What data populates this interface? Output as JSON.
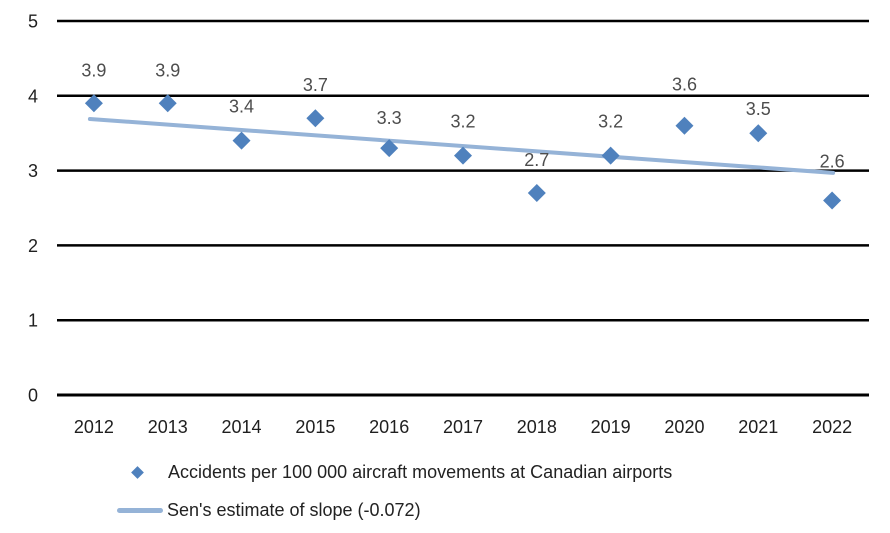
{
  "chart_data": {
    "type": "scatter",
    "title": "",
    "xlabel": "",
    "ylabel": "",
    "categories": [
      "2012",
      "2013",
      "2014",
      "2015",
      "2016",
      "2017",
      "2018",
      "2019",
      "2020",
      "2021",
      "2022"
    ],
    "yticks": [
      "0",
      "1",
      "2",
      "3",
      "4",
      "5"
    ],
    "ylim": [
      0,
      5
    ],
    "grid": "horizontal-only",
    "legend_position": "bottom-left",
    "series": [
      {
        "name": "Accidents per 100 000 aircraft movements at Canadian airports",
        "type": "scatter",
        "marker": "diamond",
        "color": "#4F81BD",
        "values": [
          3.9,
          3.9,
          3.4,
          3.7,
          3.3,
          3.2,
          2.7,
          3.2,
          3.6,
          3.5,
          2.6
        ],
        "data_labels": [
          "3.9",
          "3.9",
          "3.4",
          "3.7",
          "3.3",
          "3.2",
          "2.7",
          "3.2",
          "3.6",
          "3.5",
          "2.6"
        ]
      },
      {
        "name": "Sen's estimate of slope (-0.072)",
        "type": "trend-line",
        "color": "#95B3D7",
        "slope": -0.072,
        "endpoints_y": [
          3.69,
          2.97
        ]
      }
    ]
  },
  "legend": {
    "items": [
      {
        "label": "Accidents per 100 000 aircraft movements at Canadian airports",
        "marker": "diamond-icon",
        "color": "#4F81BD"
      },
      {
        "label": "Sen's estimate of slope (-0.072)",
        "marker": "line-icon",
        "color": "#95B3D7"
      }
    ]
  },
  "colors": {
    "marker": "#4F81BD",
    "trend_line": "#95B3D7",
    "gridline": "#000000",
    "data_label_text": "#4d4d4d",
    "tick_label_text": "#1f1f1f"
  }
}
